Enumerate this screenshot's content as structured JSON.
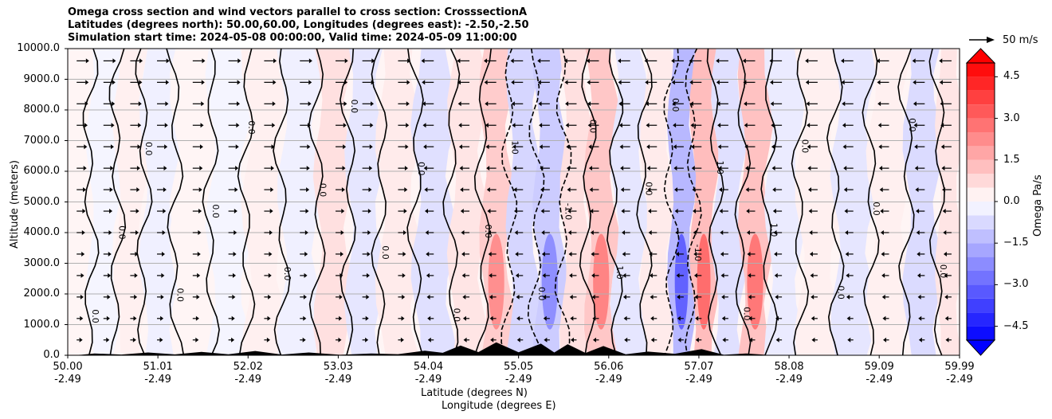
{
  "chart_data": {
    "type": "heatmap",
    "title_lines": [
      "Omega cross section and wind vectors parallel to cross section: CrosssectionA",
      "Latitudes (degrees north): 50.00,60.00, Longitudes (degrees east): -2.50,-2.50",
      "Simulation start time: 2024-05-08 00:00:00, Valid time: 2024-05-09 11:00:00"
    ],
    "xlabel_line1": "Latitude (degrees N)",
    "xlabel_line2": "Longitude (degrees E)",
    "ylabel": "Altitude (meters)",
    "x_ticks": [
      {
        "lat": "50.00",
        "lon": "-2.49"
      },
      {
        "lat": "51.01",
        "lon": "-2.49"
      },
      {
        "lat": "52.02",
        "lon": "-2.49"
      },
      {
        "lat": "53.03",
        "lon": "-2.49"
      },
      {
        "lat": "54.04",
        "lon": "-2.49"
      },
      {
        "lat": "55.05",
        "lon": "-2.49"
      },
      {
        "lat": "56.06",
        "lon": "-2.49"
      },
      {
        "lat": "57.07",
        "lon": "-2.49"
      },
      {
        "lat": "58.08",
        "lon": "-2.49"
      },
      {
        "lat": "59.09",
        "lon": "-2.49"
      },
      {
        "lat": "59.99",
        "lon": "-2.49"
      }
    ],
    "x_range": [
      50.0,
      59.99
    ],
    "y_ticks": [
      "0.0",
      "1000.0",
      "2000.0",
      "3000.0",
      "4000.0",
      "5000.0",
      "6000.0",
      "7000.0",
      "8000.0",
      "9000.0",
      "10000.0"
    ],
    "y_range": [
      0,
      10000
    ],
    "grid": "horizontal",
    "colorbar": {
      "label": "Omega Pa/s",
      "ticks": [
        "−4.5",
        "−3.0",
        "−1.5",
        "0.0",
        "1.5",
        "3.0",
        "4.5"
      ],
      "tick_values": [
        -4.5,
        -3.0,
        -1.5,
        0.0,
        1.5,
        3.0,
        4.5
      ],
      "range": [
        -5.0,
        5.0
      ],
      "extend": "both",
      "cmap": "bwr",
      "low_color": "#0000ff",
      "high_color": "#ff0000",
      "mid_color": "#ffffff"
    },
    "contour_labels": [
      "0.0",
      "1.0",
      "-1.0"
    ],
    "vector_key": {
      "label": "50 m/s",
      "value": 50
    },
    "bands": [
      {
        "lat": 50.1,
        "omega": 0.2
      },
      {
        "lat": 50.4,
        "omega": -0.2
      },
      {
        "lat": 50.7,
        "omega": 0.3
      },
      {
        "lat": 51.0,
        "omega": -0.3
      },
      {
        "lat": 51.4,
        "omega": 0.2
      },
      {
        "lat": 51.8,
        "omega": -0.2
      },
      {
        "lat": 52.2,
        "omega": 0.3
      },
      {
        "lat": 52.6,
        "omega": -0.3
      },
      {
        "lat": 53.0,
        "omega": 0.6
      },
      {
        "lat": 53.3,
        "omega": -0.5
      },
      {
        "lat": 53.7,
        "omega": 0.4
      },
      {
        "lat": 54.1,
        "omega": -0.6
      },
      {
        "lat": 54.5,
        "omega": 0.5
      },
      {
        "lat": 54.8,
        "omega": 1.0
      },
      {
        "lat": 55.1,
        "omega": -0.8
      },
      {
        "lat": 55.4,
        "omega": -1.0
      },
      {
        "lat": 55.7,
        "omega": 0.6
      },
      {
        "lat": 55.95,
        "omega": 1.1
      },
      {
        "lat": 56.3,
        "omega": -0.5
      },
      {
        "lat": 56.6,
        "omega": 0.4
      },
      {
        "lat": 56.9,
        "omega": -1.4
      },
      {
        "lat": 57.1,
        "omega": 1.3
      },
      {
        "lat": 57.4,
        "omega": -0.6
      },
      {
        "lat": 57.7,
        "omega": 1.2
      },
      {
        "lat": 58.0,
        "omega": -0.4
      },
      {
        "lat": 58.4,
        "omega": 0.3
      },
      {
        "lat": 58.8,
        "omega": -0.5
      },
      {
        "lat": 59.2,
        "omega": 0.3
      },
      {
        "lat": 59.6,
        "omega": -0.7
      },
      {
        "lat": 59.9,
        "omega": 0.5
      }
    ],
    "terrain_peaks": [
      {
        "lat": 50.3,
        "alt": 60
      },
      {
        "lat": 50.9,
        "alt": 90
      },
      {
        "lat": 51.5,
        "alt": 110
      },
      {
        "lat": 52.1,
        "alt": 140
      },
      {
        "lat": 52.7,
        "alt": 90
      },
      {
        "lat": 53.4,
        "alt": 60
      },
      {
        "lat": 54.0,
        "alt": 150
      },
      {
        "lat": 54.4,
        "alt": 320
      },
      {
        "lat": 54.8,
        "alt": 420
      },
      {
        "lat": 55.3,
        "alt": 380
      },
      {
        "lat": 55.6,
        "alt": 360
      },
      {
        "lat": 56.0,
        "alt": 300
      },
      {
        "lat": 56.5,
        "alt": 120
      },
      {
        "lat": 57.1,
        "alt": 200
      },
      {
        "lat": 57.6,
        "alt": 60
      }
    ]
  }
}
